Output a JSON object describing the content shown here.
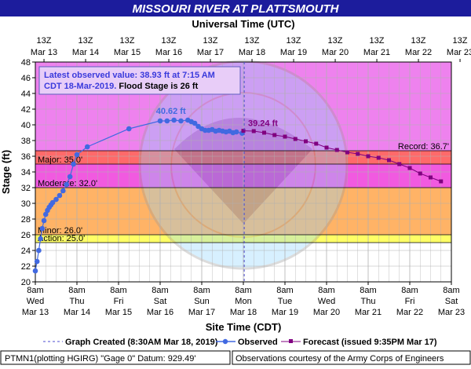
{
  "header": {
    "title": "MISSOURI RIVER AT PLATTSMOUTH",
    "top_axis_title": "Universal Time (UTC)"
  },
  "info_box": {
    "line1": "Latest observed value: 38.93 ft at 7:15 AM",
    "line2_date": "CDT 18-Mar-2019.",
    "line2_flood": " Flood Stage is 26 ft"
  },
  "footer": {
    "bottom_axis_title": "Site Time (CDT)",
    "legend": {
      "created": "Graph Created (8:30AM Mar 18, 2019)",
      "observed": "Observed",
      "forecast": "Forecast (issued 9:35PM Mar 17)"
    },
    "gauge_info": "PTMN1(plotting HGIRG) \"Gage 0\" Datum: 929.49'",
    "courtesy": "Observations courtesy of the Army Corps of Engineers"
  },
  "colors": {
    "title_bar": "#1c1c9c",
    "record": "#ee82ee",
    "major": "#f15ae0",
    "moderate": "#ff5050",
    "minor_flood": "#ffb366",
    "action": "#ffff66",
    "observed": "#4169e1",
    "forecast": "#800080",
    "bg": "#ffffff"
  },
  "chart_data": {
    "type": "line",
    "ylabel": "Stage (ft)",
    "xlabel": "Site Time (CDT)",
    "ylim": [
      20,
      48
    ],
    "yticks": [
      20,
      22,
      24,
      26,
      28,
      30,
      32,
      34,
      36,
      38,
      40,
      42,
      44,
      46,
      48
    ],
    "x_range_days": [
      "2019-03-13 08:00",
      "2019-03-23 08:00"
    ],
    "top_ticks": [
      {
        "l1": "13Z",
        "l2": "Mar 13"
      },
      {
        "l1": "13Z",
        "l2": "Mar 14"
      },
      {
        "l1": "13Z",
        "l2": "Mar 15"
      },
      {
        "l1": "13Z",
        "l2": "Mar 16"
      },
      {
        "l1": "13Z",
        "l2": "Mar 17"
      },
      {
        "l1": "13Z",
        "l2": "Mar 18"
      },
      {
        "l1": "13Z",
        "l2": "Mar 19"
      },
      {
        "l1": "13Z",
        "l2": "Mar 20"
      },
      {
        "l1": "13Z",
        "l2": "Mar 21"
      },
      {
        "l1": "13Z",
        "l2": "Mar 22"
      },
      {
        "l1": "13Z",
        "l2": "Mar 23"
      }
    ],
    "bottom_ticks": [
      {
        "l1": "8am",
        "l2": "Wed",
        "l3": "Mar 13"
      },
      {
        "l1": "8am",
        "l2": "Thu",
        "l3": "Mar 14"
      },
      {
        "l1": "8am",
        "l2": "Fri",
        "l3": "Mar 15"
      },
      {
        "l1": "8am",
        "l2": "Sat",
        "l3": "Mar 16"
      },
      {
        "l1": "8am",
        "l2": "Sun",
        "l3": "Mar 17"
      },
      {
        "l1": "8am",
        "l2": "Mon",
        "l3": "Mar 18"
      },
      {
        "l1": "8am",
        "l2": "Tue",
        "l3": "Mar 19"
      },
      {
        "l1": "8am",
        "l2": "Wed",
        "l3": "Mar 20"
      },
      {
        "l1": "8am",
        "l2": "Thu",
        "l3": "Mar 21"
      },
      {
        "l1": "8am",
        "l2": "Fri",
        "l3": "Mar 22"
      },
      {
        "l1": "8am",
        "l2": "Sat",
        "l3": "Mar 23"
      }
    ],
    "flood_categories": [
      {
        "name": "Record",
        "label": "Record: 36.7'",
        "stage": 36.7
      },
      {
        "name": "Major",
        "label": "Major: 35.0'",
        "stage": 35.0
      },
      {
        "name": "Moderate",
        "label": "Moderate: 32.0'",
        "stage": 32.0
      },
      {
        "name": "Minor",
        "label": "Minor: 26.0'",
        "stage": 26.0
      },
      {
        "name": "Action",
        "label": "Action: 25.0'",
        "stage": 25.0
      }
    ],
    "graph_created": "2019-03-18 08:30",
    "series": [
      {
        "name": "Observed",
        "points": [
          [
            "2019-03-13 08:00",
            21.4
          ],
          [
            "2019-03-13 09:00",
            22.6
          ],
          [
            "2019-03-13 10:00",
            24.0
          ],
          [
            "2019-03-13 11:00",
            25.5
          ],
          [
            "2019-03-13 12:00",
            26.8
          ],
          [
            "2019-03-13 13:00",
            27.8
          ],
          [
            "2019-03-13 14:00",
            28.6
          ],
          [
            "2019-03-13 15:00",
            29.1
          ],
          [
            "2019-03-13 16:00",
            29.5
          ],
          [
            "2019-03-13 17:00",
            29.8
          ],
          [
            "2019-03-13 18:00",
            30.1
          ],
          [
            "2019-03-13 20:00",
            30.5
          ],
          [
            "2019-03-13 22:00",
            31.0
          ],
          [
            "2019-03-14 00:00",
            31.6
          ],
          [
            "2019-03-14 02:00",
            32.4
          ],
          [
            "2019-03-14 04:00",
            33.4
          ],
          [
            "2019-03-14 06:00",
            35.0
          ],
          [
            "2019-03-14 08:00",
            36.2
          ],
          [
            "2019-03-14 14:00",
            37.2
          ],
          [
            "2019-03-15 14:00",
            39.5
          ],
          [
            "2019-03-16 08:00",
            40.5
          ],
          [
            "2019-03-16 12:00",
            40.5
          ],
          [
            "2019-03-16 16:00",
            40.6
          ],
          [
            "2019-03-16 20:00",
            40.5
          ],
          [
            "2019-03-17 00:00",
            40.6
          ],
          [
            "2019-03-17 02:00",
            40.4
          ],
          [
            "2019-03-17 04:00",
            40.2
          ],
          [
            "2019-03-17 06:00",
            39.8
          ],
          [
            "2019-03-17 08:00",
            39.5
          ],
          [
            "2019-03-17 10:00",
            39.3
          ],
          [
            "2019-03-17 12:00",
            39.3
          ],
          [
            "2019-03-17 14:00",
            39.4
          ],
          [
            "2019-03-17 16:00",
            39.2
          ],
          [
            "2019-03-17 18:00",
            39.3
          ],
          [
            "2019-03-17 20:00",
            39.2
          ],
          [
            "2019-03-17 22:00",
            39.1
          ],
          [
            "2019-03-18 00:00",
            39.2
          ],
          [
            "2019-03-18 02:00",
            39.0
          ],
          [
            "2019-03-18 04:00",
            39.1
          ],
          [
            "2019-03-18 07:15",
            38.93
          ]
        ]
      },
      {
        "name": "Forecast (issued 9:35PM Mar 17)",
        "points": [
          [
            "2019-03-18 08:00",
            39.24
          ],
          [
            "2019-03-18 14:00",
            39.2
          ],
          [
            "2019-03-18 20:00",
            39.0
          ],
          [
            "2019-03-19 02:00",
            38.7
          ],
          [
            "2019-03-19 08:00",
            38.5
          ],
          [
            "2019-03-19 14:00",
            38.2
          ],
          [
            "2019-03-19 20:00",
            37.9
          ],
          [
            "2019-03-20 02:00",
            37.6
          ],
          [
            "2019-03-20 08:00",
            37.1
          ],
          [
            "2019-03-20 14:00",
            36.8
          ],
          [
            "2019-03-20 20:00",
            36.5
          ],
          [
            "2019-03-21 02:00",
            36.3
          ],
          [
            "2019-03-21 08:00",
            36.0
          ],
          [
            "2019-03-21 14:00",
            35.8
          ],
          [
            "2019-03-21 20:00",
            35.5
          ],
          [
            "2019-03-22 02:00",
            35.0
          ],
          [
            "2019-03-22 08:00",
            34.5
          ],
          [
            "2019-03-22 14:00",
            33.8
          ],
          [
            "2019-03-22 20:00",
            33.3
          ],
          [
            "2019-03-23 02:00",
            32.8
          ]
        ]
      }
    ],
    "annotations": [
      {
        "text": "40.62 ft",
        "series": "Observed",
        "at": "2019-03-16 16:00",
        "value": 40.62
      },
      {
        "text": "39.24 ft",
        "series": "Forecast",
        "at": "2019-03-18 08:00",
        "value": 39.24
      }
    ]
  }
}
